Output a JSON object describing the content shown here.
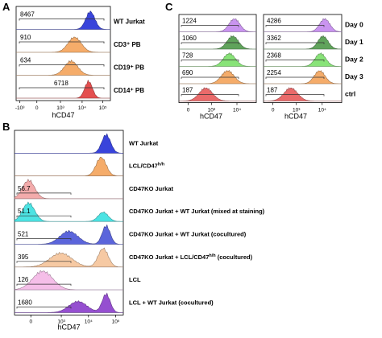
{
  "panels": [
    {
      "letter": "A",
      "xlabel": "hCD47",
      "ticks": [
        "-10³",
        "0",
        "10³",
        "10⁴",
        "10⁵"
      ],
      "lanes": [
        {
          "label": "WT Jurkat",
          "gate_value": "8467",
          "color": "#2430d8",
          "peaks": [
            {
              "center": 3.85,
              "width": 0.26,
              "height": 1.0
            }
          ]
        },
        {
          "label": "CD3⁺ PB",
          "gate_value": "910",
          "color": "#f4a45a",
          "peaks": [
            {
              "center": 2.95,
              "width": 0.38,
              "height": 0.85
            }
          ]
        },
        {
          "label": "CD19⁺ PB",
          "gate_value": "634",
          "color": "#f4a45a",
          "peaks": [
            {
              "center": 2.75,
              "width": 0.38,
              "height": 0.8
            }
          ]
        },
        {
          "label": "CD14⁺ PB",
          "gate_value": "6718",
          "color": "#e23c3c",
          "peaks": [
            {
              "center": 3.75,
              "width": 0.22,
              "height": 0.95
            }
          ]
        }
      ]
    },
    {
      "letter": "B",
      "xlabel": "hCD47",
      "ticks": [
        "0",
        "10³",
        "10⁴",
        "10⁵"
      ],
      "lanes": [
        {
          "label": "WT Jurkat",
          "gate_value": "",
          "color": "#2430d8",
          "peaks": [
            {
              "center": 4.15,
              "width": 0.22,
              "height": 1.0
            }
          ]
        },
        {
          "label": "LCL/CD47",
          "label_sup": "h/h",
          "gate_value": "",
          "color": "#f4a45a",
          "peaks": [
            {
              "center": 3.9,
              "width": 0.25,
              "height": 1.0
            }
          ]
        },
        {
          "label": "CD47KO Jurkat",
          "gate_value": "56.7",
          "color": "#f2a2a2",
          "peaks": [
            {
              "center": 0.3,
              "width": 0.3,
              "height": 1.0
            }
          ]
        },
        {
          "label": "CD47KO Jurkat + WT Jurkat (mixed at staining)",
          "gate_value": "51.1",
          "color": "#39e0e0",
          "peaks": [
            {
              "center": 0.3,
              "width": 0.3,
              "height": 1.0
            },
            {
              "center": 4.0,
              "width": 0.25,
              "height": 0.5
            }
          ]
        },
        {
          "label": "CD47KO Jurkat + WT Jurkat (cocultured)",
          "gate_value": "521",
          "color": "#4a55d8",
          "peaks": [
            {
              "center": 2.3,
              "width": 0.45,
              "height": 0.7
            },
            {
              "center": 4.15,
              "width": 0.2,
              "height": 1.0
            }
          ]
        },
        {
          "label": "CD47KO Jurkat + LCL/CD47",
          "label_sup": "h/h",
          "label_after": " (cocultured)",
          "gate_value": "395",
          "color": "#f6c49a",
          "peaks": [
            {
              "center": 1.9,
              "width": 0.55,
              "height": 0.75
            },
            {
              "center": 4.0,
              "width": 0.25,
              "height": 1.0
            }
          ]
        },
        {
          "label": "LCL",
          "gate_value": "126",
          "color": "#f4b8e6",
          "peaks": [
            {
              "center": 1.0,
              "width": 0.5,
              "height": 1.0
            }
          ]
        },
        {
          "label": "LCL + WT Jurkat (cocultured)",
          "gate_value": "1680",
          "color": "#8a3ccc",
          "peaks": [
            {
              "center": 2.75,
              "width": 0.45,
              "height": 0.6
            },
            {
              "center": 4.15,
              "width": 0.2,
              "height": 1.0
            }
          ]
        }
      ]
    },
    {
      "letter": "C",
      "xlabel": "hCD47",
      "ticks": [
        "0",
        "10³",
        "10⁴"
      ],
      "legend": [
        "Day 0",
        "Day 1",
        "Day 2",
        "Day 3",
        "ctrl"
      ],
      "colors": [
        "#c489ee",
        "#4f9a4a",
        "#7ce06a",
        "#f4a45a",
        "#e85a5a"
      ],
      "left_values": [
        "1224",
        "1060",
        "728",
        "690",
        "187"
      ],
      "right_values": [
        "4286",
        "3362",
        "2368",
        "2254",
        "187"
      ]
    }
  ]
}
